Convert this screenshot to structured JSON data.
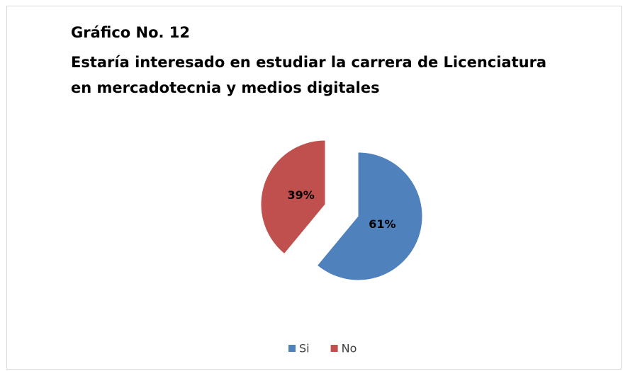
{
  "chart_data": {
    "type": "pie",
    "title": "Gráfico No. 12",
    "subtitle": "Estaría interesado en estudiar la carrera de Licenciatura en mercadotecnia y medios digitales",
    "categories": [
      "Si",
      "No"
    ],
    "values": [
      61,
      39
    ],
    "value_labels": [
      "61%",
      "39%"
    ],
    "colors": [
      "#4f81bd",
      "#c0504d"
    ],
    "exploded": true,
    "legend": "bottom"
  }
}
